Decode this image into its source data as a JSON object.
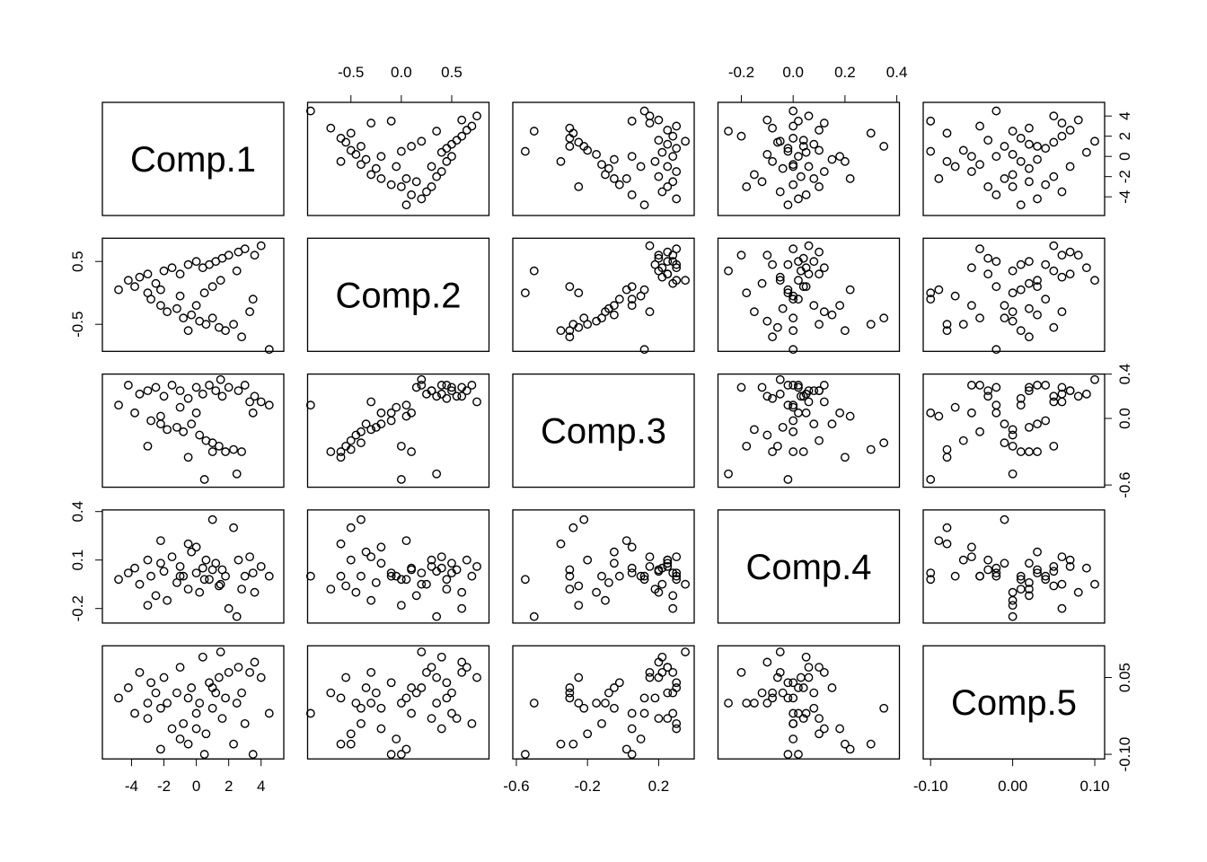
{
  "chart_data": {
    "type": "pairs",
    "variables": [
      {
        "name": "Comp.1",
        "lim": [
          -5.8,
          5.4
        ],
        "ylim": [
          -5.85,
          5.35
        ],
        "xticks": [
          -4,
          -2,
          0,
          2,
          4
        ],
        "yticks": [
          -4,
          -2,
          0,
          2,
          4
        ],
        "values": [
          -4.8,
          -4.2,
          -3.8,
          -3.5,
          -3.0,
          -2.8,
          -2.5,
          -2.2,
          -2.0,
          -1.8,
          -1.5,
          -1.2,
          -1.0,
          -0.8,
          -0.5,
          -0.3,
          0.0,
          0.2,
          0.4,
          0.6,
          0.8,
          1.0,
          1.2,
          1.4,
          1.6,
          1.8,
          2.0,
          2.3,
          2.6,
          2.8,
          3.0,
          3.3,
          3.6,
          4.0,
          4.5,
          -2.2,
          0.5,
          2.5,
          -1.0,
          1.0,
          -3.0,
          0.0,
          1.5,
          -0.5,
          3.5
        ]
      },
      {
        "name": "Comp.2",
        "lim": [
          -0.93,
          0.87
        ],
        "ylim": [
          -0.93,
          0.87
        ],
        "xticks": [
          -0.5,
          {
            "value": 0,
            "label": "0.0"
          },
          0.5
        ],
        "yticks": [
          -0.5,
          0.5
        ],
        "values": [
          0.05,
          0.2,
          0.1,
          0.25,
          0.3,
          -0.1,
          0.15,
          -0.2,
          0.35,
          -0.3,
          0.4,
          -0.25,
          0.3,
          -0.4,
          0.45,
          -0.35,
          0.5,
          -0.45,
          0.4,
          -0.5,
          0.45,
          -0.4,
          0.5,
          -0.55,
          0.55,
          -0.6,
          0.6,
          -0.5,
          0.65,
          -0.7,
          0.7,
          -0.3,
          0.6,
          0.75,
          -0.9,
          0.05,
          0.0,
          0.35,
          -0.05,
          0.1,
          0.0,
          -0.2,
          0.2,
          -0.6,
          -0.1
        ]
      },
      {
        "name": "Comp.3",
        "lim": [
          -0.62,
          0.4
        ],
        "ylim": [
          -0.62,
          0.4
        ],
        "xticks": [
          -0.6,
          -0.2,
          0.2
        ],
        "yticks": [
          -0.6,
          {
            "value": 0,
            "label": "0.0"
          },
          0.4
        ],
        "values": [
          0.12,
          0.3,
          0.05,
          0.22,
          0.25,
          -0.02,
          0.28,
          -0.05,
          0.2,
          -0.1,
          0.3,
          -0.08,
          0.25,
          -0.12,
          0.18,
          -0.05,
          0.28,
          -0.15,
          0.22,
          -0.2,
          0.3,
          -0.22,
          0.25,
          -0.25,
          0.2,
          -0.3,
          0.28,
          -0.28,
          0.25,
          -0.3,
          0.3,
          0.15,
          0.2,
          0.15,
          0.12,
          0.02,
          -0.55,
          -0.5,
          0.1,
          -0.3,
          -0.25,
          0.05,
          0.35,
          -0.35,
          0.05
        ]
      },
      {
        "name": "Comp.4",
        "lim": [
          -0.29,
          0.41
        ],
        "ylim": [
          -0.29,
          0.41
        ],
        "xticks": [
          -0.2,
          {
            "value": 0,
            "label": "0.0"
          },
          0.2,
          0.4
        ],
        "yticks": [
          -0.2,
          0.1,
          0.4
        ],
        "values": [
          -0.02,
          0.02,
          0.05,
          -0.05,
          0.1,
          0.0,
          -0.12,
          0.08,
          0.03,
          -0.15,
          0.12,
          -0.04,
          0.06,
          0.0,
          -0.08,
          0.15,
          0.02,
          -0.1,
          0.05,
          0.1,
          -0.02,
          0.35,
          0.08,
          -0.06,
          0.04,
          0.0,
          -0.2,
          0.3,
          0.1,
          -0.08,
          0.0,
          0.12,
          -0.1,
          0.06,
          0.0,
          0.22,
          -0.02,
          -0.25,
          0.0,
          0.04,
          -0.18,
          0.18,
          -0.05,
          0.2,
          0.02
        ]
      },
      {
        "name": "Comp.5",
        "lim": [
          -0.109,
          0.112
        ],
        "ylim": [
          -0.109,
          0.112
        ],
        "xticks": [
          {
            "value": -0.1,
            "label": "-0.10"
          },
          {
            "value": 0,
            "label": "0.00"
          },
          {
            "value": 0.1,
            "label": "0.10"
          }
        ],
        "yticks": [
          {
            "value": -0.1,
            "label": "-0.10"
          },
          0.05
        ],
        "values": [
          0.01,
          0.03,
          -0.02,
          0.06,
          -0.03,
          0.04,
          0.02,
          -0.01,
          0.05,
          0.0,
          -0.05,
          0.02,
          0.07,
          -0.04,
          0.01,
          0.03,
          -0.02,
          0.0,
          0.09,
          -0.06,
          0.04,
          -0.01,
          0.02,
          0.05,
          -0.03,
          0.01,
          0.06,
          -0.08,
          0.07,
          0.02,
          -0.04,
          0.06,
          0.08,
          0.05,
          -0.02,
          -0.09,
          -0.1,
          0.0,
          -0.07,
          0.03,
          0.0,
          -0.05,
          0.1,
          -0.08,
          -0.1
        ]
      }
    ]
  }
}
